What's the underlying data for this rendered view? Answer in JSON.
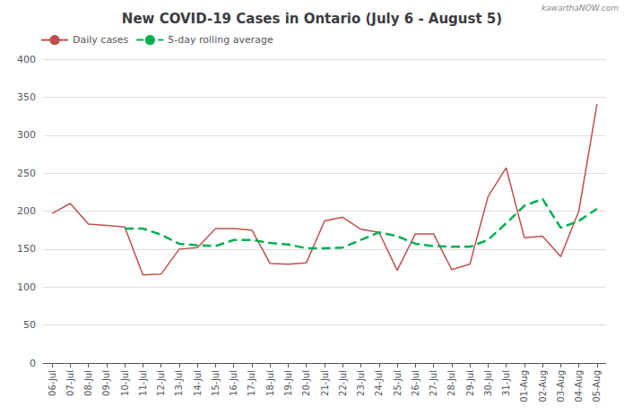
{
  "chart_data": {
    "type": "line",
    "title": "New COVID-19 Cases in Ontario (July 6 - August 5)",
    "annotations": [
      "kawarthaNOW.com"
    ],
    "categories": [
      "06-Jul",
      "07-Jul",
      "08-Jul",
      "09-Jul",
      "10-Jul",
      "11-Jul",
      "12-Jul",
      "13-Jul",
      "14-Jul",
      "15-Jul",
      "16-Jul",
      "17-Jul",
      "18-Jul",
      "19-Jul",
      "20-Jul",
      "21-Jul",
      "22-Jul",
      "23-Jul",
      "24-Jul",
      "25-Jul",
      "26-Jul",
      "27-Jul",
      "28-Jul",
      "29-Jul",
      "30-Jul",
      "31-Jul",
      "01-Aug",
      "02-Aug",
      "03-Aug",
      "04-Aug",
      "05-Aug"
    ],
    "series": [
      {
        "name": "Daily cases",
        "color": "#c0504d",
        "line_style": "solid",
        "values": [
          197,
          210,
          183,
          181,
          179,
          116,
          117,
          150,
          152,
          177,
          177,
          175,
          131,
          130,
          132,
          187,
          192,
          176,
          172,
          122,
          170,
          170,
          123,
          130,
          219,
          257,
          165,
          167,
          140,
          200,
          341
        ]
      },
      {
        "name": "5-day rolling average",
        "color": "#00b050",
        "line_style": "dashed",
        "values": [
          null,
          null,
          null,
          null,
          177,
          177,
          169,
          157,
          155,
          154,
          162,
          162,
          158,
          156,
          151,
          151,
          152,
          162,
          172,
          167,
          157,
          154,
          153,
          153,
          162,
          184,
          207,
          216,
          178,
          187,
          203
        ]
      }
    ],
    "ylim": [
      0,
      400
    ],
    "yticks": [
      0,
      50,
      100,
      150,
      200,
      250,
      300,
      350,
      400
    ],
    "grid": true,
    "legend": "upper left"
  }
}
